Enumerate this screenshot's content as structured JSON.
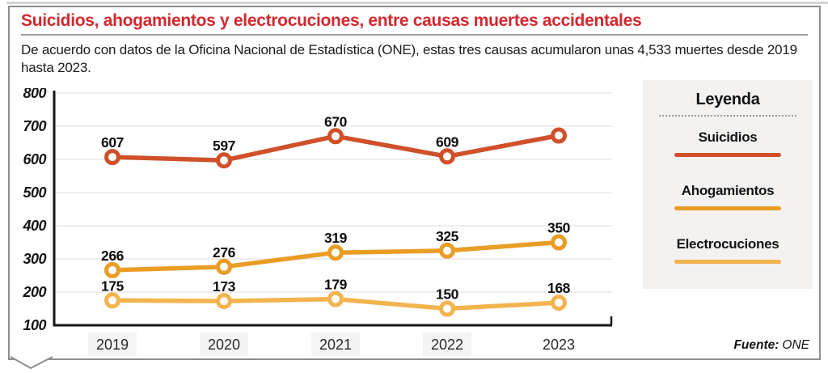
{
  "header": {
    "title": "Suicidios, ahogamientos y electrocuciones, entre causas muertes accidentales",
    "subtitle": "De acuerdo con datos de la Oficina Nacional de Estadística (ONE), estas tres causas acumularon unas 4,533 muertes desde 2019 hasta 2023."
  },
  "legend": {
    "title": "Leyenda",
    "items": [
      {
        "label": "Suicidios",
        "color": "#d0502a"
      },
      {
        "label": "Ahogamientos",
        "color": "#ea9d24"
      },
      {
        "label": "Electrocuciones",
        "color": "#f2b44e"
      }
    ]
  },
  "source": {
    "label": "Fuente:",
    "value": "ONE"
  },
  "colors": {
    "title_red": "#d2282e",
    "legend_bg": "#f3f2f0",
    "year_chip_bg": "#f4f4f4",
    "axis": "#161616",
    "grid": "#e8e8e8"
  },
  "chart_data": {
    "type": "line",
    "categories": [
      "2019",
      "2020",
      "2021",
      "2022",
      "2023"
    ],
    "series": [
      {
        "name": "Suicidios",
        "color": "#d0502a",
        "values": [
          607,
          597,
          670,
          609,
          672
        ],
        "labels": [
          "607",
          "597",
          "670",
          "609",
          ""
        ]
      },
      {
        "name": "Ahogamientos",
        "color": "#ea9d24",
        "values": [
          266,
          276,
          319,
          325,
          350
        ],
        "labels": [
          "266",
          "276",
          "319",
          "325",
          "350"
        ]
      },
      {
        "name": "Electrocuciones",
        "color": "#f2b44e",
        "values": [
          175,
          173,
          179,
          150,
          168
        ],
        "labels": [
          "175",
          "173",
          "179",
          "150",
          "168"
        ]
      }
    ],
    "ylim": [
      100,
      800
    ],
    "yticks": [
      100,
      200,
      300,
      400,
      500,
      600,
      700,
      800
    ],
    "grid": true,
    "legend_position": "right",
    "title": "Suicidios, ahogamientos y electrocuciones, entre causas muertes accidentales",
    "xlabel": "",
    "ylabel": ""
  }
}
